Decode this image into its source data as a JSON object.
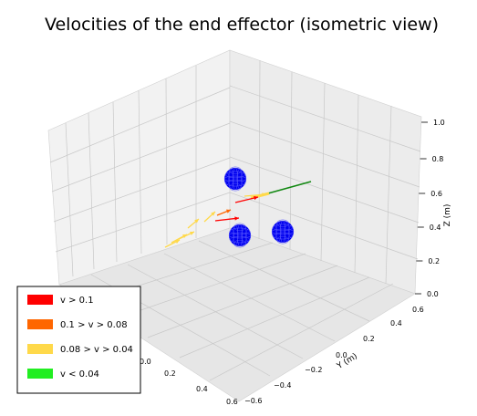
{
  "chart_data": {
    "type": "3d-quiver",
    "title": "Velocities of the end effector (isometric view)",
    "axes": {
      "x": {
        "label": "X (m)",
        "label_visible": "X (m)",
        "ticks": [
          "0.0",
          "0.2",
          "0.4",
          "0.6"
        ]
      },
      "y": {
        "label": "Y (m)",
        "ticks": [
          "−0.6",
          "−0.4",
          "−0.2",
          "0.0",
          "0.2",
          "0.4",
          "0.6"
        ]
      },
      "z": {
        "label": "Z (m)",
        "ticks": [
          "0.0",
          "0.2",
          "0.4",
          "0.6",
          "0.8",
          "1.0"
        ]
      },
      "xlim": [
        -0.6,
        0.6
      ],
      "ylim": [
        -0.6,
        0.6
      ],
      "zlim": [
        0.0,
        1.0
      ],
      "grid": true
    },
    "legend": {
      "placement": "lower-left",
      "entries": [
        {
          "label": "v > 0.1",
          "color": "#ff0000"
        },
        {
          "label": "0.1 > v > 0.08",
          "color": "#ff6600"
        },
        {
          "label": "0.08 > v > 0.04",
          "color": "#ffd94a"
        },
        {
          "label": "v < 0.04",
          "color": "#22ee22"
        }
      ]
    },
    "spheres": [
      {
        "x": 0.0,
        "y": -0.1,
        "z": 0.6,
        "color": "#0000ee"
      },
      {
        "x": 0.3,
        "y": -0.05,
        "z": 0.4,
        "color": "#0000ee"
      },
      {
        "x": 0.15,
        "y": 0.25,
        "z": 0.4,
        "color": "#0000ee"
      }
    ],
    "path_color": "#118811"
  }
}
